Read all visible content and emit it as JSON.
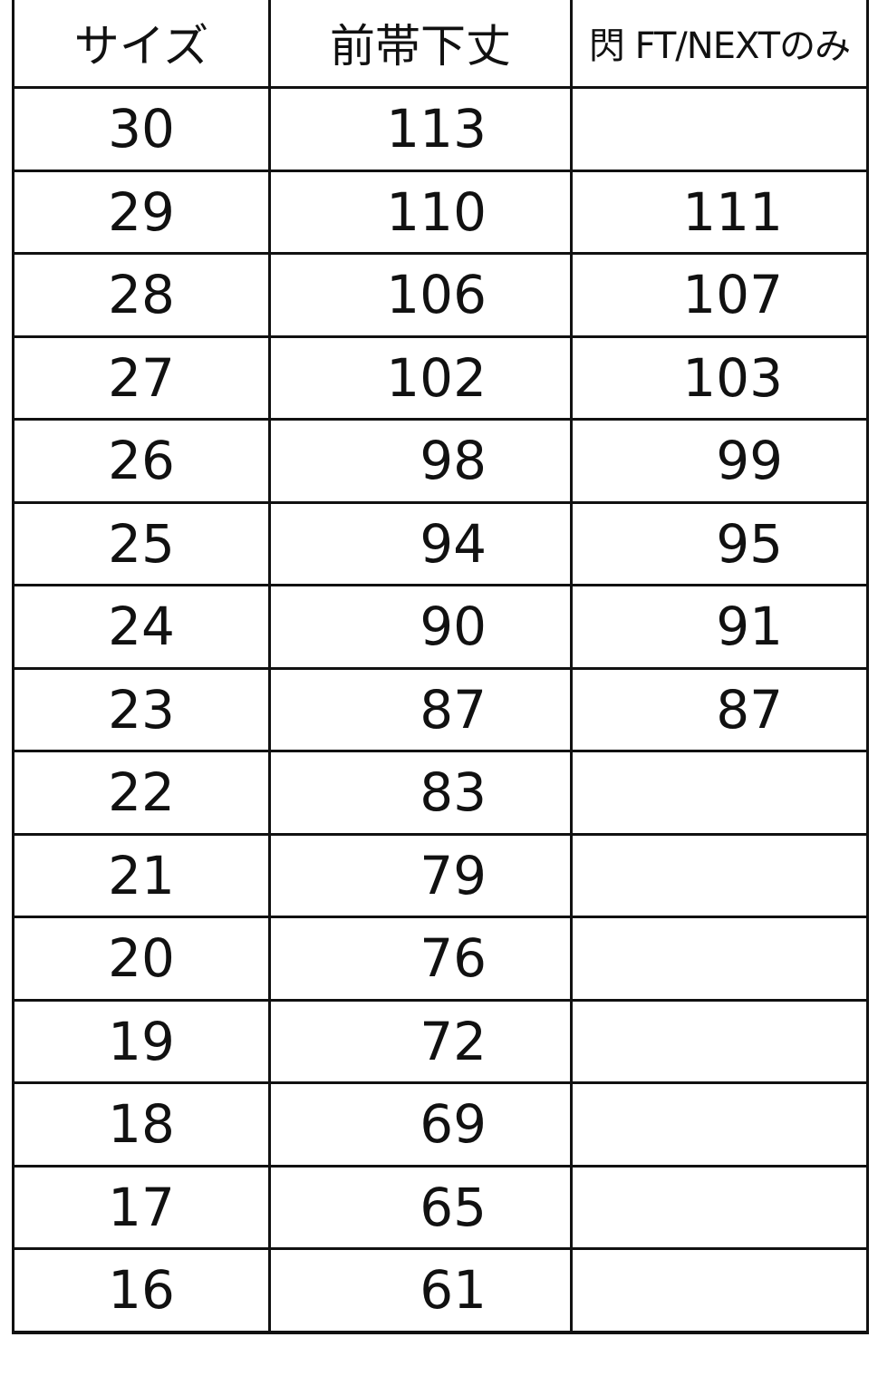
{
  "table": {
    "headers": [
      "サイズ",
      "前帯下丈",
      "閃 FT/NEXTのみ"
    ],
    "rows": [
      [
        "30",
        "113",
        ""
      ],
      [
        "29",
        "110",
        "111"
      ],
      [
        "28",
        "106",
        "107"
      ],
      [
        "27",
        "102",
        "103"
      ],
      [
        "26",
        "98",
        "99"
      ],
      [
        "25",
        "94",
        "95"
      ],
      [
        "24",
        "90",
        "91"
      ],
      [
        "23",
        "87",
        "87"
      ],
      [
        "22",
        "83",
        ""
      ],
      [
        "21",
        "79",
        ""
      ],
      [
        "20",
        "76",
        ""
      ],
      [
        "19",
        "72",
        ""
      ],
      [
        "18",
        "69",
        ""
      ],
      [
        "17",
        "65",
        ""
      ],
      [
        "16",
        "61",
        ""
      ]
    ]
  }
}
